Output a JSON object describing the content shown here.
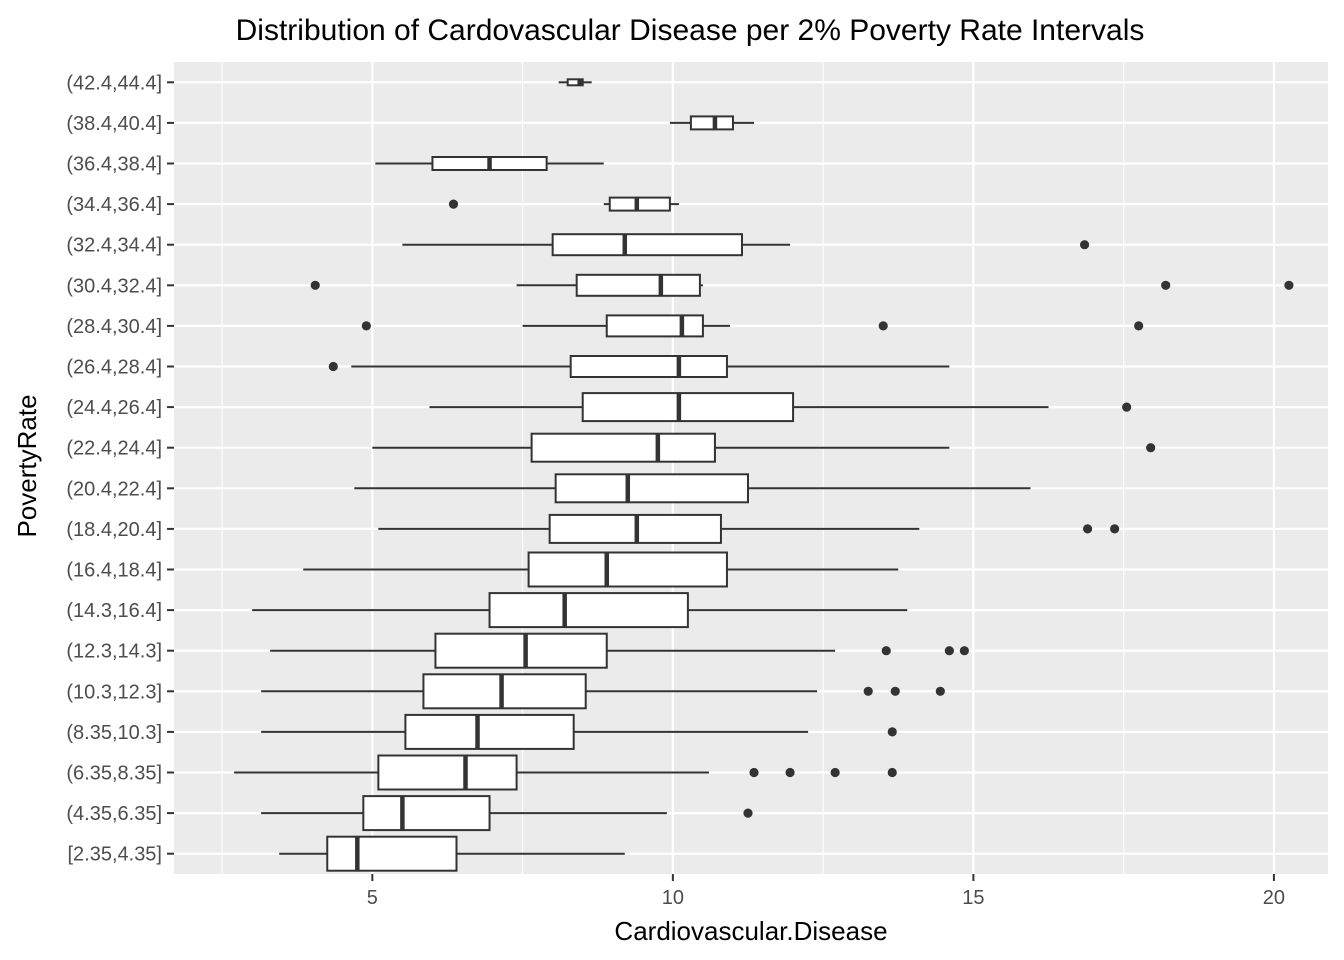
{
  "chart_data": {
    "type": "boxplot",
    "orientation": "horizontal",
    "title": "Distribution of Cardovascular Disease per 2% Poverty Rate Intervals",
    "xlabel": "Cardiovascular.Disease",
    "ylabel": "PovertyRate",
    "xlim": [
      1.7,
      20.9
    ],
    "x_ticks": [
      5,
      10,
      15,
      20
    ],
    "x_tick_labels": [
      "5",
      "10",
      "15",
      "20"
    ],
    "grid": true,
    "colors": {
      "panel": "#ebebeb",
      "grid_major": "#ffffff",
      "box_fill": "#ffffff",
      "box_line": "#333333",
      "outlier": "#333333"
    },
    "categories": [
      "[2.35,4.35]",
      "(4.35,6.35]",
      "(6.35,8.35]",
      "(8.35,10.3]",
      "(10.3,12.3]",
      "(12.3,14.3]",
      "(14.3,16.4]",
      "(16.4,18.4]",
      "(18.4,20.4]",
      "(20.4,22.4]",
      "(22.4,24.4]",
      "(24.4,26.4]",
      "(26.4,28.4]",
      "(28.4,30.4]",
      "(30.4,32.4]",
      "(32.4,34.4]",
      "(34.4,36.4]",
      "(36.4,38.4]",
      "(38.4,40.4]",
      "(42.4,44.4]"
    ],
    "boxes": [
      {
        "category": "[2.35,4.35]",
        "min": 3.45,
        "q1": 4.25,
        "median": 4.75,
        "q3": 6.4,
        "max": 9.2,
        "outliers": [],
        "width": "wide"
      },
      {
        "category": "(4.35,6.35]",
        "min": 3.15,
        "q1": 4.85,
        "median": 5.5,
        "q3": 6.95,
        "max": 9.9,
        "outliers": [
          11.25
        ],
        "width": "wide"
      },
      {
        "category": "(6.35,8.35]",
        "min": 2.7,
        "q1": 5.1,
        "median": 6.55,
        "q3": 7.4,
        "max": 10.6,
        "outliers": [
          11.35,
          11.95,
          12.7,
          13.65
        ],
        "width": "wide"
      },
      {
        "category": "(8.35,10.3]",
        "min": 3.15,
        "q1": 5.55,
        "median": 6.75,
        "q3": 8.35,
        "max": 12.25,
        "outliers": [
          13.65
        ],
        "width": "wide"
      },
      {
        "category": "(10.3,12.3]",
        "min": 3.15,
        "q1": 5.85,
        "median": 7.15,
        "q3": 8.55,
        "max": 12.4,
        "outliers": [
          13.25,
          13.7,
          14.45
        ],
        "width": "wide"
      },
      {
        "category": "(12.3,14.3]",
        "min": 3.3,
        "q1": 6.05,
        "median": 7.55,
        "q3": 8.9,
        "max": 12.7,
        "outliers": [
          13.55,
          14.6,
          14.85
        ],
        "width": "wide"
      },
      {
        "category": "(14.3,16.4]",
        "min": 3.0,
        "q1": 6.95,
        "median": 8.2,
        "q3": 10.25,
        "max": 13.9,
        "outliers": [],
        "width": "wide"
      },
      {
        "category": "(16.4,18.4]",
        "min": 3.85,
        "q1": 7.6,
        "median": 8.9,
        "q3": 10.9,
        "max": 13.75,
        "outliers": [],
        "width": "wide"
      },
      {
        "category": "(18.4,20.4]",
        "min": 5.1,
        "q1": 7.95,
        "median": 9.4,
        "q3": 10.8,
        "max": 14.1,
        "outliers": [
          16.9,
          17.35
        ],
        "width": "medium"
      },
      {
        "category": "(20.4,22.4]",
        "min": 4.7,
        "q1": 8.05,
        "median": 9.25,
        "q3": 11.25,
        "max": 15.95,
        "outliers": [],
        "width": "medium"
      },
      {
        "category": "(22.4,24.4]",
        "min": 5.0,
        "q1": 7.65,
        "median": 9.75,
        "q3": 10.7,
        "max": 14.6,
        "outliers": [
          17.95
        ],
        "width": "medium"
      },
      {
        "category": "(24.4,26.4]",
        "min": 5.95,
        "q1": 8.5,
        "median": 10.1,
        "q3": 12.0,
        "max": 16.25,
        "outliers": [
          17.55
        ],
        "width": "medium"
      },
      {
        "category": "(26.4,28.4]",
        "min": 4.65,
        "q1": 8.3,
        "median": 10.1,
        "q3": 10.9,
        "max": 14.6,
        "outliers": [
          4.35
        ],
        "width": "narrow"
      },
      {
        "category": "(28.4,30.4]",
        "min": 7.5,
        "q1": 8.9,
        "median": 10.15,
        "q3": 10.5,
        "max": 10.95,
        "outliers": [
          4.9,
          13.5,
          17.75
        ],
        "width": "narrow"
      },
      {
        "category": "(30.4,32.4]",
        "min": 7.4,
        "q1": 8.4,
        "median": 9.8,
        "q3": 10.45,
        "max": 10.5,
        "outliers": [
          4.05,
          18.2,
          20.25
        ],
        "width": "narrow"
      },
      {
        "category": "(32.4,34.4]",
        "min": 5.5,
        "q1": 8.0,
        "median": 9.2,
        "q3": 11.15,
        "max": 11.95,
        "outliers": [
          16.85
        ],
        "width": "narrow"
      },
      {
        "category": "(34.4,36.4]",
        "min": 8.85,
        "q1": 8.95,
        "median": 9.4,
        "q3": 9.95,
        "max": 10.1,
        "outliers": [
          6.35
        ],
        "width": "xnarrow"
      },
      {
        "category": "(36.4,38.4]",
        "min": 5.05,
        "q1": 6.0,
        "median": 6.95,
        "q3": 7.9,
        "max": 8.85,
        "outliers": [],
        "width": "xnarrow"
      },
      {
        "category": "(38.4,40.4]",
        "min": 9.95,
        "q1": 10.3,
        "median": 10.7,
        "q3": 11.0,
        "max": 11.35,
        "outliers": [],
        "width": "xnarrow"
      },
      {
        "category": "(42.4,44.4]",
        "min": 8.1,
        "q1": 8.25,
        "median": 8.45,
        "q3": 8.5,
        "max": 8.65,
        "outliers": [],
        "width": "xxnarrow"
      }
    ]
  }
}
